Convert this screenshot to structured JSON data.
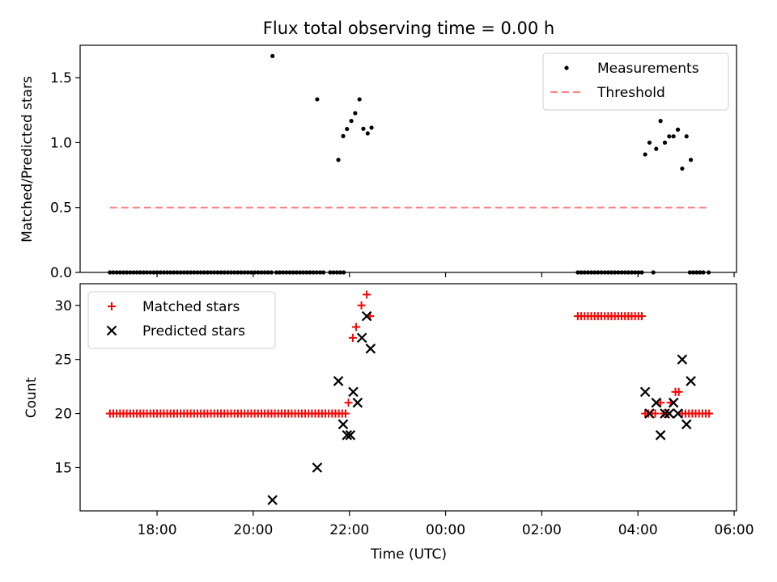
{
  "title": "Flux total observing time = 0.00 h",
  "colors": {
    "measurement": "#000000",
    "threshold": "#ff7f7f",
    "matched": "#ff0000",
    "predicted": "#000000"
  },
  "chart_data": [
    {
      "type": "scatter",
      "ylabel": "Matched/Predicted stars",
      "xlabel": "",
      "x_unit": "hours since 00:00 (UTC), negative = previous day",
      "xlim": [
        -7.6,
        6.05
      ],
      "ylim": [
        0,
        1.75
      ],
      "yticks": [
        0.0,
        0.5,
        1.0,
        1.5
      ],
      "ytick_labels": [
        "0.0",
        "0.5",
        "1.0",
        "1.5"
      ],
      "xtick_labels": [],
      "legend": {
        "position": "top-right",
        "entries": [
          "Measurements",
          "Threshold"
        ]
      },
      "threshold": {
        "name": "Threshold",
        "value": 0.5,
        "x_range": [
          -6.98,
          5.47
        ]
      },
      "series": [
        {
          "name": "Measurements",
          "marker": "dot",
          "points": [
            [
              -6.98,
              0
            ],
            [
              -6.91,
              0
            ],
            [
              -6.84,
              0
            ],
            [
              -6.77,
              0
            ],
            [
              -6.7,
              0
            ],
            [
              -6.63,
              0
            ],
            [
              -6.56,
              0
            ],
            [
              -6.49,
              0
            ],
            [
              -6.42,
              0
            ],
            [
              -6.35,
              0
            ],
            [
              -6.28,
              0
            ],
            [
              -6.21,
              0
            ],
            [
              -6.14,
              0
            ],
            [
              -6.07,
              0
            ],
            [
              -6.0,
              0
            ],
            [
              -5.93,
              0
            ],
            [
              -5.86,
              0
            ],
            [
              -5.79,
              0
            ],
            [
              -5.72,
              0
            ],
            [
              -5.65,
              0
            ],
            [
              -5.58,
              0
            ],
            [
              -5.51,
              0
            ],
            [
              -5.44,
              0
            ],
            [
              -5.37,
              0
            ],
            [
              -5.3,
              0
            ],
            [
              -5.23,
              0
            ],
            [
              -5.16,
              0
            ],
            [
              -5.09,
              0
            ],
            [
              -5.02,
              0
            ],
            [
              -4.95,
              0
            ],
            [
              -4.88,
              0
            ],
            [
              -4.81,
              0
            ],
            [
              -4.74,
              0
            ],
            [
              -4.67,
              0
            ],
            [
              -4.6,
              0
            ],
            [
              -4.53,
              0
            ],
            [
              -4.46,
              0
            ],
            [
              -4.39,
              0
            ],
            [
              -4.32,
              0
            ],
            [
              -4.25,
              0
            ],
            [
              -4.18,
              0
            ],
            [
              -4.11,
              0
            ],
            [
              -4.04,
              0
            ],
            [
              -3.97,
              0
            ],
            [
              -3.9,
              0
            ],
            [
              -3.83,
              0
            ],
            [
              -3.76,
              0
            ],
            [
              -3.69,
              0
            ],
            [
              -3.62,
              0
            ],
            [
              -3.52,
              0
            ],
            [
              -3.45,
              0
            ],
            [
              -3.38,
              0
            ],
            [
              -3.31,
              0
            ],
            [
              -3.24,
              0
            ],
            [
              -3.17,
              0
            ],
            [
              -3.1,
              0
            ],
            [
              -3.03,
              0
            ],
            [
              -2.96,
              0
            ],
            [
              -2.89,
              0
            ],
            [
              -2.82,
              0
            ],
            [
              -2.75,
              0
            ],
            [
              -2.68,
              0
            ],
            [
              -2.61,
              0
            ],
            [
              -2.54,
              0
            ],
            [
              -2.4,
              0
            ],
            [
              -2.33,
              0
            ],
            [
              -2.26,
              0
            ],
            [
              -2.19,
              0
            ],
            [
              -2.12,
              0
            ],
            [
              -3.6,
              1.667
            ],
            [
              -2.67,
              1.333
            ],
            [
              -2.23,
              0.867
            ],
            [
              -2.13,
              1.05
            ],
            [
              -2.05,
              1.105
            ],
            [
              -1.96,
              1.167
            ],
            [
              -1.88,
              1.227
            ],
            [
              -1.79,
              1.333
            ],
            [
              -1.71,
              1.107
            ],
            [
              -1.62,
              1.071
            ],
            [
              -1.54,
              1.115
            ],
            [
              2.75,
              0
            ],
            [
              2.82,
              0
            ],
            [
              2.89,
              0
            ],
            [
              2.96,
              0
            ],
            [
              3.03,
              0
            ],
            [
              3.1,
              0
            ],
            [
              3.17,
              0
            ],
            [
              3.24,
              0
            ],
            [
              3.31,
              0
            ],
            [
              3.38,
              0
            ],
            [
              3.45,
              0
            ],
            [
              3.52,
              0
            ],
            [
              3.59,
              0
            ],
            [
              3.66,
              0
            ],
            [
              3.73,
              0
            ],
            [
              3.8,
              0
            ],
            [
              3.87,
              0
            ],
            [
              3.94,
              0
            ],
            [
              4.01,
              0
            ],
            [
              4.08,
              0
            ],
            [
              4.32,
              0
            ],
            [
              5.08,
              0
            ],
            [
              5.15,
              0
            ],
            [
              5.22,
              0
            ],
            [
              5.29,
              0
            ],
            [
              5.36,
              0
            ],
            [
              5.47,
              0
            ],
            [
              4.15,
              0.909
            ],
            [
              4.24,
              1.0
            ],
            [
              4.38,
              0.952
            ],
            [
              4.47,
              1.167
            ],
            [
              4.56,
              1.0
            ],
            [
              4.65,
              1.048
            ],
            [
              4.74,
              1.048
            ],
            [
              4.83,
              1.1
            ],
            [
              4.92,
              0.8
            ],
            [
              5.01,
              1.048
            ],
            [
              5.1,
              0.867
            ]
          ]
        }
      ]
    },
    {
      "type": "scatter",
      "ylabel": "Count",
      "xlabel": "Time (UTC)",
      "x_unit": "hours since 00:00 (UTC), negative = previous day",
      "xlim": [
        -7.6,
        6.05
      ],
      "ylim": [
        11,
        32
      ],
      "yticks": [
        15,
        20,
        25,
        30
      ],
      "ytick_labels": [
        "15",
        "20",
        "25",
        "30"
      ],
      "xticks": [
        -6,
        -4,
        -2,
        0,
        2,
        4,
        6
      ],
      "xtick_labels": [
        "18:00",
        "20:00",
        "22:00",
        "00:00",
        "02:00",
        "04:00",
        "06:00"
      ],
      "legend": {
        "position": "top-left",
        "entries": [
          "Matched stars",
          "Predicted stars"
        ]
      },
      "series": [
        {
          "name": "Matched stars",
          "marker": "plus",
          "points": [
            [
              -6.98,
              20
            ],
            [
              -6.91,
              20
            ],
            [
              -6.84,
              20
            ],
            [
              -6.77,
              20
            ],
            [
              -6.7,
              20
            ],
            [
              -6.63,
              20
            ],
            [
              -6.56,
              20
            ],
            [
              -6.49,
              20
            ],
            [
              -6.42,
              20
            ],
            [
              -6.35,
              20
            ],
            [
              -6.28,
              20
            ],
            [
              -6.21,
              20
            ],
            [
              -6.14,
              20
            ],
            [
              -6.07,
              20
            ],
            [
              -6.0,
              20
            ],
            [
              -5.93,
              20
            ],
            [
              -5.86,
              20
            ],
            [
              -5.79,
              20
            ],
            [
              -5.72,
              20
            ],
            [
              -5.65,
              20
            ],
            [
              -5.58,
              20
            ],
            [
              -5.51,
              20
            ],
            [
              -5.44,
              20
            ],
            [
              -5.37,
              20
            ],
            [
              -5.3,
              20
            ],
            [
              -5.23,
              20
            ],
            [
              -5.16,
              20
            ],
            [
              -5.09,
              20
            ],
            [
              -5.02,
              20
            ],
            [
              -4.95,
              20
            ],
            [
              -4.88,
              20
            ],
            [
              -4.81,
              20
            ],
            [
              -4.74,
              20
            ],
            [
              -4.67,
              20
            ],
            [
              -4.6,
              20
            ],
            [
              -4.53,
              20
            ],
            [
              -4.46,
              20
            ],
            [
              -4.39,
              20
            ],
            [
              -4.32,
              20
            ],
            [
              -4.25,
              20
            ],
            [
              -4.18,
              20
            ],
            [
              -4.11,
              20
            ],
            [
              -4.04,
              20
            ],
            [
              -3.97,
              20
            ],
            [
              -3.9,
              20
            ],
            [
              -3.83,
              20
            ],
            [
              -3.76,
              20
            ],
            [
              -3.69,
              20
            ],
            [
              -3.62,
              20
            ],
            [
              -3.55,
              20
            ],
            [
              -3.48,
              20
            ],
            [
              -3.41,
              20
            ],
            [
              -3.34,
              20
            ],
            [
              -3.27,
              20
            ],
            [
              -3.2,
              20
            ],
            [
              -3.13,
              20
            ],
            [
              -3.06,
              20
            ],
            [
              -2.99,
              20
            ],
            [
              -2.92,
              20
            ],
            [
              -2.85,
              20
            ],
            [
              -2.78,
              20
            ],
            [
              -2.71,
              20
            ],
            [
              -2.64,
              20
            ],
            [
              -2.57,
              20
            ],
            [
              -2.5,
              20
            ],
            [
              -2.43,
              20
            ],
            [
              -2.36,
              20
            ],
            [
              -2.29,
              20
            ],
            [
              -2.22,
              20
            ],
            [
              -2.15,
              20
            ],
            [
              -2.08,
              20
            ],
            [
              -2.02,
              21
            ],
            [
              -1.93,
              27
            ],
            [
              -1.86,
              28
            ],
            [
              -1.75,
              30
            ],
            [
              -1.64,
              31
            ],
            [
              -1.57,
              29
            ],
            [
              2.75,
              29
            ],
            [
              2.82,
              29
            ],
            [
              2.89,
              29
            ],
            [
              2.96,
              29
            ],
            [
              3.03,
              29
            ],
            [
              3.1,
              29
            ],
            [
              3.17,
              29
            ],
            [
              3.24,
              29
            ],
            [
              3.31,
              29
            ],
            [
              3.38,
              29
            ],
            [
              3.45,
              29
            ],
            [
              3.52,
              29
            ],
            [
              3.59,
              29
            ],
            [
              3.66,
              29
            ],
            [
              3.73,
              29
            ],
            [
              3.8,
              29
            ],
            [
              3.87,
              29
            ],
            [
              3.94,
              29
            ],
            [
              4.01,
              29
            ],
            [
              4.08,
              29
            ],
            [
              4.15,
              20
            ],
            [
              4.22,
              20
            ],
            [
              4.29,
              20
            ],
            [
              4.36,
              20
            ],
            [
              4.47,
              21
            ],
            [
              4.54,
              20
            ],
            [
              4.61,
              20
            ],
            [
              4.68,
              21
            ],
            [
              4.78,
              22
            ],
            [
              4.85,
              22
            ],
            [
              4.92,
              20
            ],
            [
              4.99,
              20
            ],
            [
              5.06,
              20
            ],
            [
              5.13,
              20
            ],
            [
              5.2,
              20
            ],
            [
              5.27,
              20
            ],
            [
              5.34,
              20
            ],
            [
              5.41,
              20
            ],
            [
              5.48,
              20
            ]
          ]
        },
        {
          "name": "Predicted stars",
          "marker": "x",
          "points": [
            [
              -3.6,
              12
            ],
            [
              -2.67,
              15
            ],
            [
              -2.23,
              23
            ],
            [
              -2.13,
              19
            ],
            [
              -2.05,
              18
            ],
            [
              -1.98,
              18
            ],
            [
              -1.92,
              22
            ],
            [
              -1.83,
              21
            ],
            [
              -1.74,
              27
            ],
            [
              -1.64,
              29
            ],
            [
              -1.56,
              26
            ],
            [
              4.15,
              22
            ],
            [
              4.24,
              20
            ],
            [
              4.38,
              21
            ],
            [
              4.47,
              18
            ],
            [
              4.56,
              20
            ],
            [
              4.65,
              20
            ],
            [
              4.74,
              21
            ],
            [
              4.83,
              20
            ],
            [
              4.92,
              25
            ],
            [
              5.01,
              19
            ],
            [
              5.1,
              23
            ]
          ]
        }
      ]
    }
  ]
}
